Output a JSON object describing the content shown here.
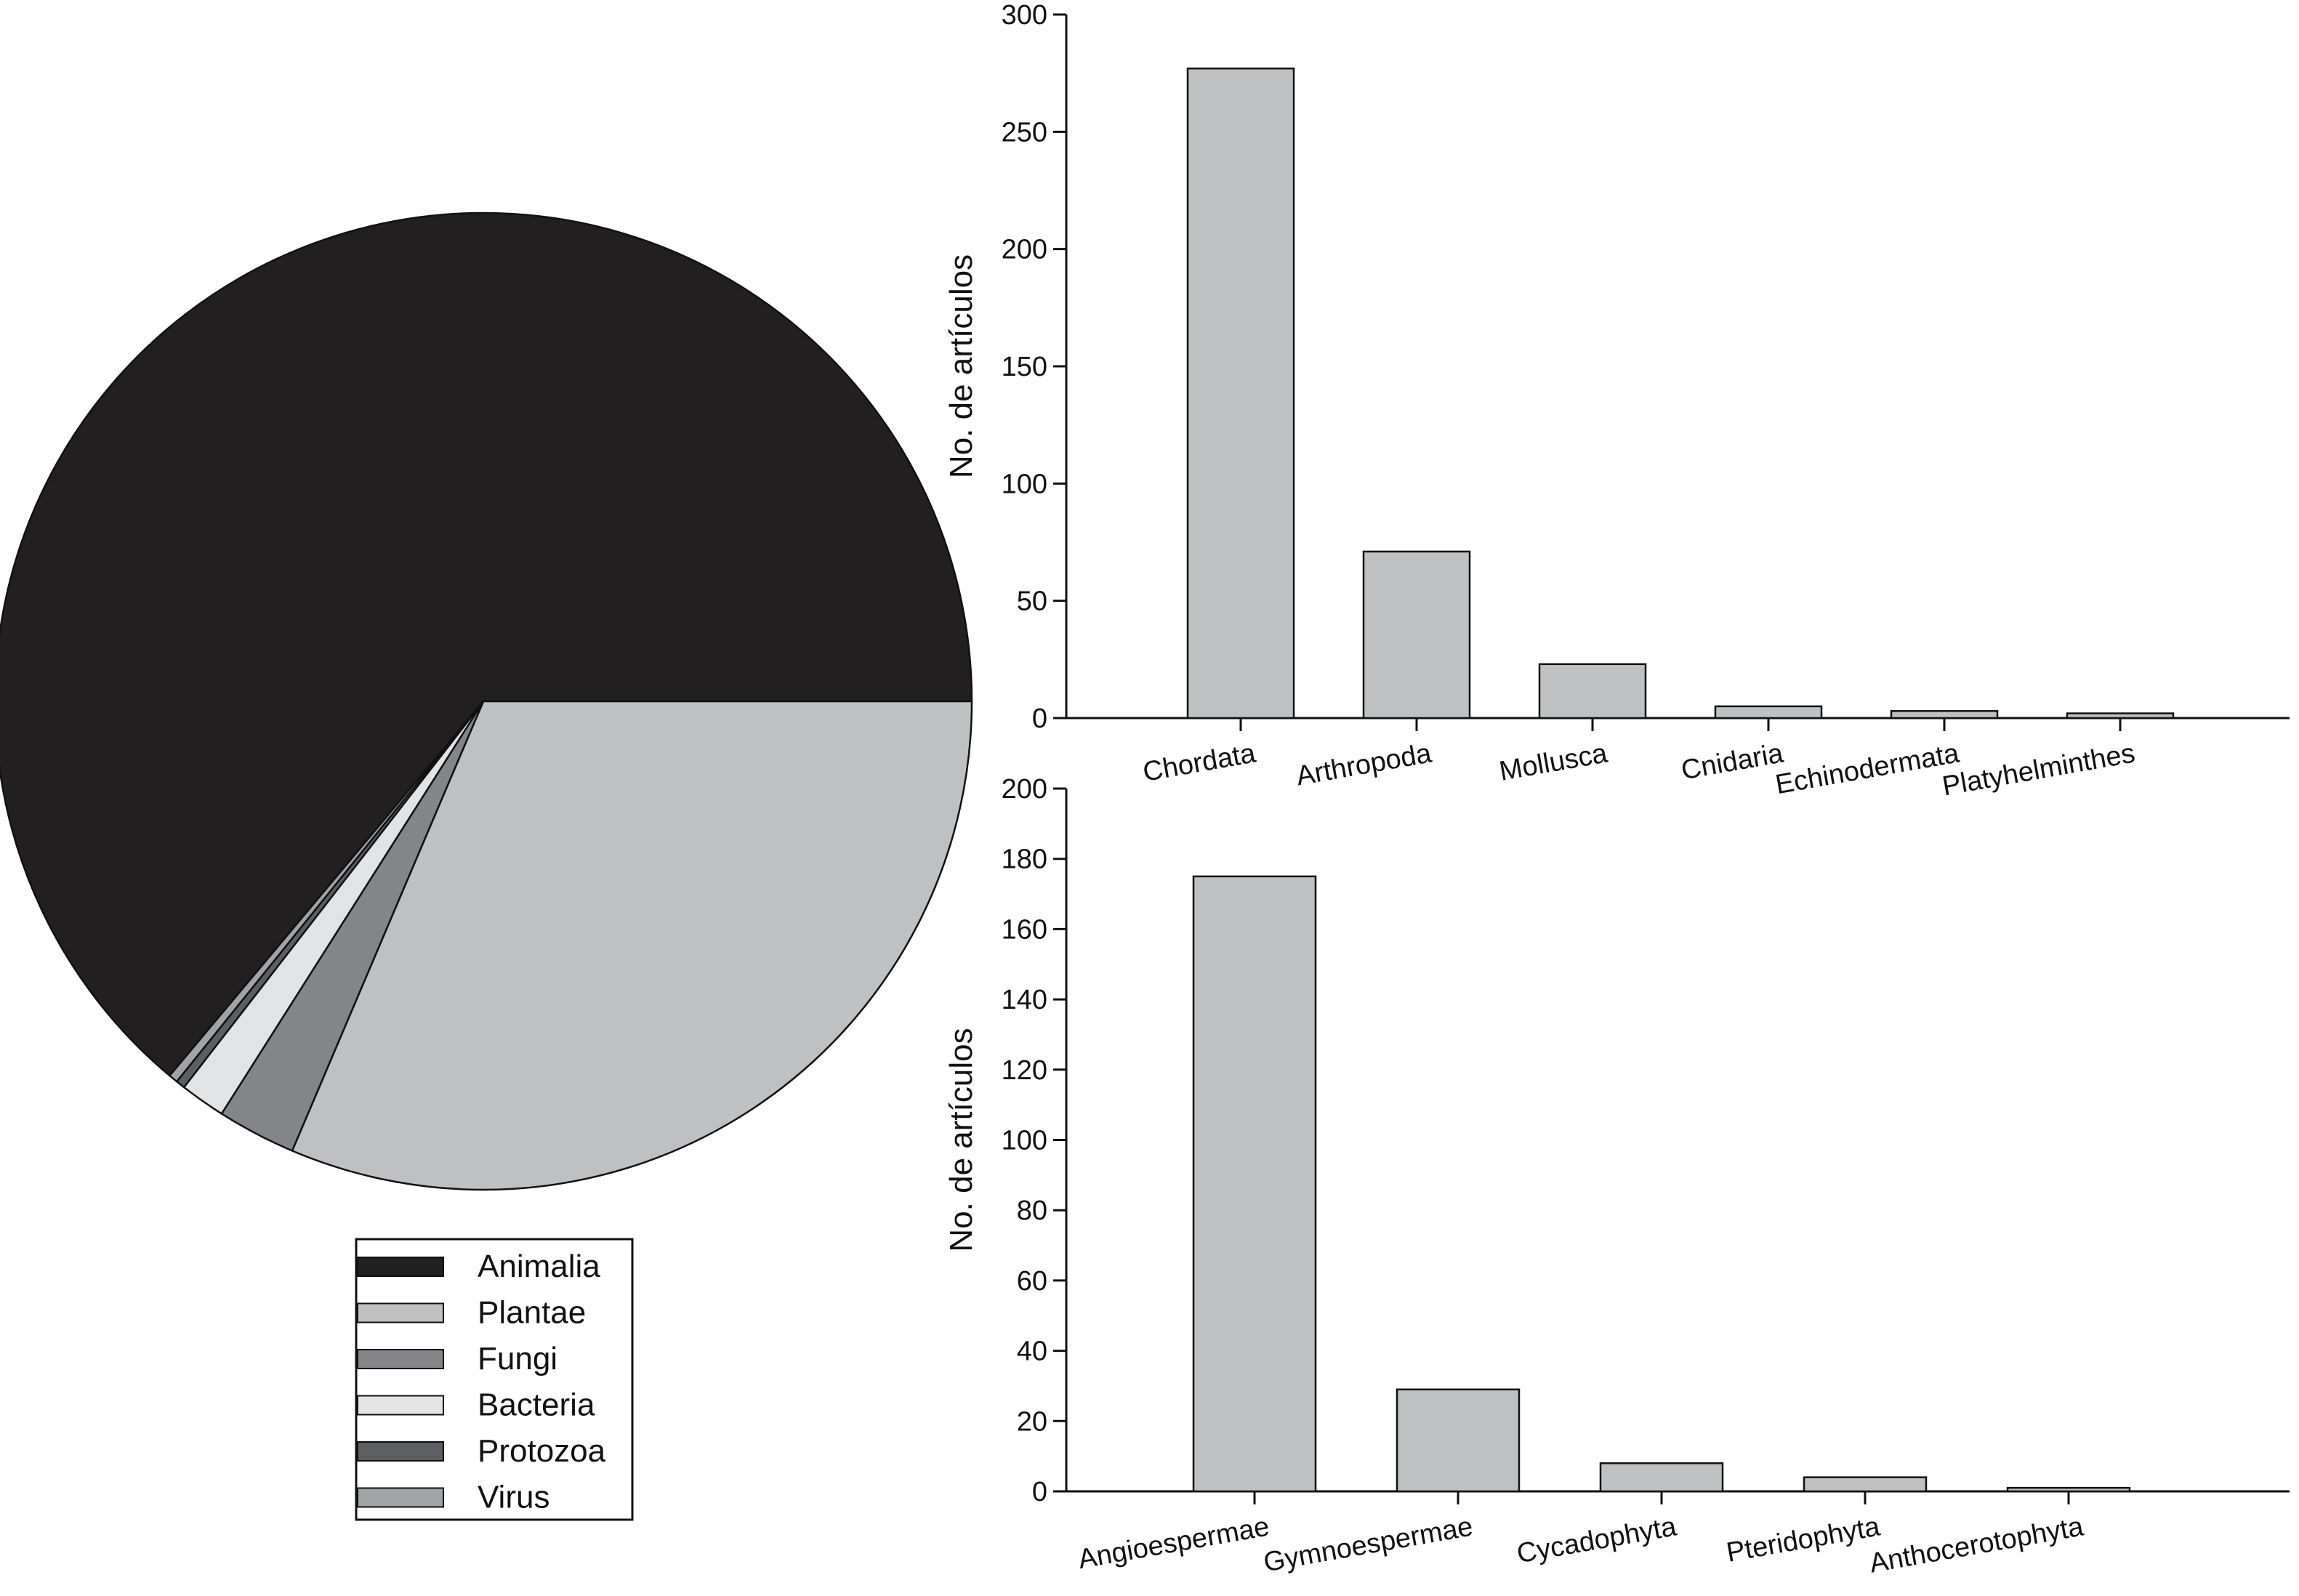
{
  "chart_data": [
    {
      "type": "pie",
      "title": "",
      "legend_position": "bottom",
      "slices": [
        {
          "label": "Animalia",
          "value": 63.9,
          "color": "#221f20"
        },
        {
          "label": "Plantae",
          "value": 31.4,
          "color": "#bfc0c2"
        },
        {
          "label": "Fungi",
          "value": 2.6,
          "color": "#838589"
        },
        {
          "label": "Bacteria",
          "value": 1.5,
          "color": "#e2e3e4"
        },
        {
          "label": "Protozoa",
          "value": 0.3,
          "color": "#5c5e62"
        },
        {
          "label": "Virus",
          "value": 0.3,
          "color": "#a1a3a6"
        }
      ]
    },
    {
      "type": "bar",
      "title": "",
      "xlabel": "",
      "ylabel": "No. de artículos",
      "ylim": [
        0,
        300
      ],
      "yticks": [
        0,
        50,
        100,
        150,
        200,
        250,
        300
      ],
      "grid": false,
      "bar_color": "#bfc0c2",
      "categories": [
        "Chordata",
        "Arthropoda",
        "Mollusca",
        "Cnidaria",
        "Echinodermata",
        "Platyhelminthes"
      ],
      "values": [
        277,
        71,
        23,
        5,
        3,
        2
      ]
    },
    {
      "type": "bar",
      "title": "",
      "xlabel": "",
      "ylabel": "No. de artículos",
      "ylim": [
        0,
        200
      ],
      "yticks": [
        0,
        20,
        40,
        60,
        80,
        100,
        120,
        140,
        160,
        180,
        200
      ],
      "grid": false,
      "bar_color": "#bfc0c2",
      "categories": [
        "Angioespermae",
        "Gymnoespermae",
        "Cycadophyta",
        "Pteridophyta",
        "Anthocerotophyta"
      ],
      "values": [
        175,
        29,
        8,
        4,
        1
      ]
    }
  ]
}
